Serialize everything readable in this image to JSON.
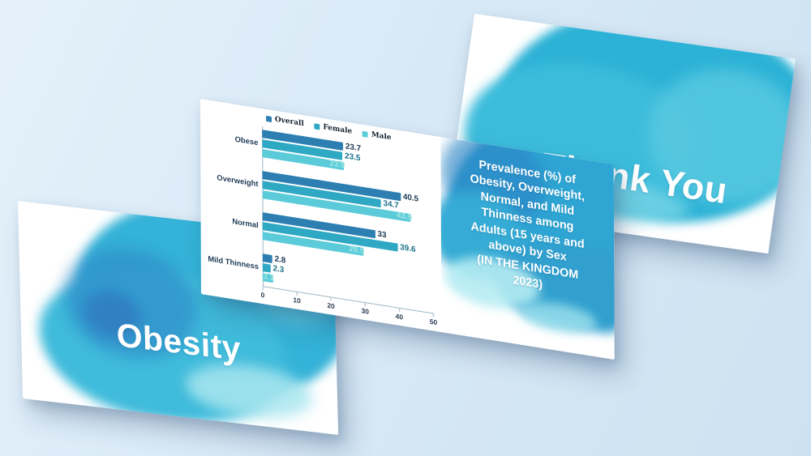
{
  "theme": {
    "background": "#d8e9f6",
    "slide_background": "#ffffff",
    "watercolor_accent": "#2fb3d8",
    "title_text_color": "#ffffff"
  },
  "slides": {
    "obesity": {
      "title": "Obesity"
    },
    "thanks": {
      "title": "Thank You"
    },
    "chart": {
      "title_block": "Prevalence (%) of\nObesity, Overweight,\nNormal, and Mild\nThinness among\nAdults (15 years and\nabove) by Sex\n(IN THE KINGDOM\n2023)"
    }
  },
  "chart_data": {
    "type": "bar",
    "orientation": "horizontal",
    "title": "Prevalence (%) of Obesity, Overweight, Normal, and Mild Thinness among Adults (15 years and above) by Sex (IN THE KINGDOM 2023)",
    "categories": [
      "Obese",
      "Overweight",
      "Normal",
      "Mild Thinness"
    ],
    "series": [
      {
        "name": "Overall",
        "color": "#2d7fb2",
        "label_color": "#1c3852",
        "values": [
          23.7,
          40.5,
          33,
          2.8
        ]
      },
      {
        "name": "Female",
        "color": "#2fa8c4",
        "label_color": "#1a7089",
        "values": [
          23.5,
          34.7,
          39.6,
          2.3
        ]
      },
      {
        "name": "Male",
        "color": "#5bcbda",
        "label_color": "#9fe7e0",
        "values": [
          23.9,
          43.5,
          29.5,
          3.1
        ]
      }
    ],
    "xlim": [
      0,
      50
    ],
    "xticks": [
      0,
      10,
      20,
      30,
      40,
      50
    ],
    "legend_position": "top",
    "grid": false,
    "value_labels": true
  }
}
